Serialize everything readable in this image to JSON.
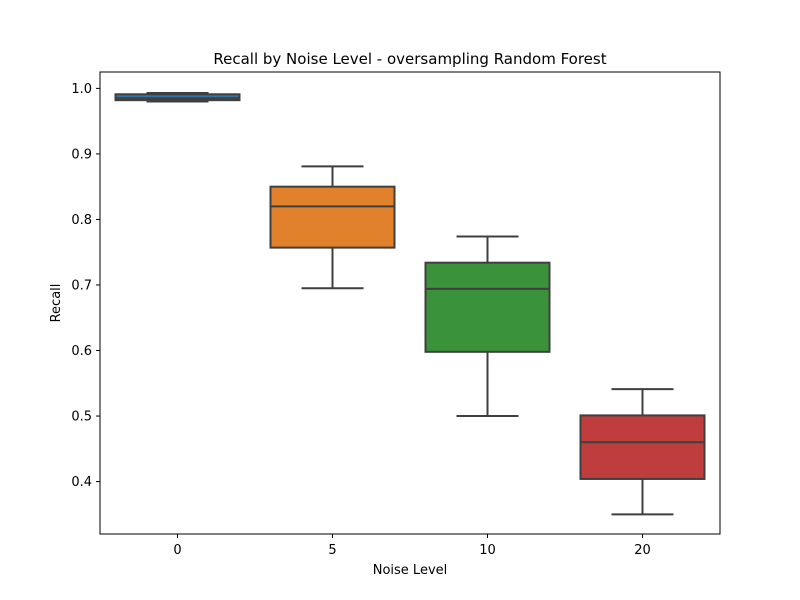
{
  "chart_data": {
    "type": "box",
    "title": "Recall by Noise Level - oversampling Random Forest",
    "xlabel": "Noise Level",
    "ylabel": "Recall",
    "ylim": [
      0.32,
      1.025
    ],
    "yticks": [
      "0.4",
      "0.5",
      "0.6",
      "0.7",
      "0.8",
      "0.9",
      "1.0"
    ],
    "grid": false,
    "categories": [
      "0",
      "5",
      "10",
      "20"
    ],
    "boxes": [
      {
        "category": "0",
        "whisker_low": 0.98,
        "q1": 0.982,
        "median": 0.985,
        "q3": 0.991,
        "whisker_high": 0.993,
        "color": "#3274a1"
      },
      {
        "category": "5",
        "whisker_low": 0.695,
        "q1": 0.757,
        "median": 0.82,
        "q3": 0.85,
        "whisker_high": 0.881,
        "color": "#e1812c"
      },
      {
        "category": "10",
        "whisker_low": 0.5,
        "q1": 0.598,
        "median": 0.694,
        "q3": 0.734,
        "whisker_high": 0.774,
        "color": "#3a923a"
      },
      {
        "category": "20",
        "whisker_low": 0.35,
        "q1": 0.404,
        "median": 0.46,
        "q3": 0.501,
        "whisker_high": 0.541,
        "color": "#c03d3e"
      }
    ]
  }
}
